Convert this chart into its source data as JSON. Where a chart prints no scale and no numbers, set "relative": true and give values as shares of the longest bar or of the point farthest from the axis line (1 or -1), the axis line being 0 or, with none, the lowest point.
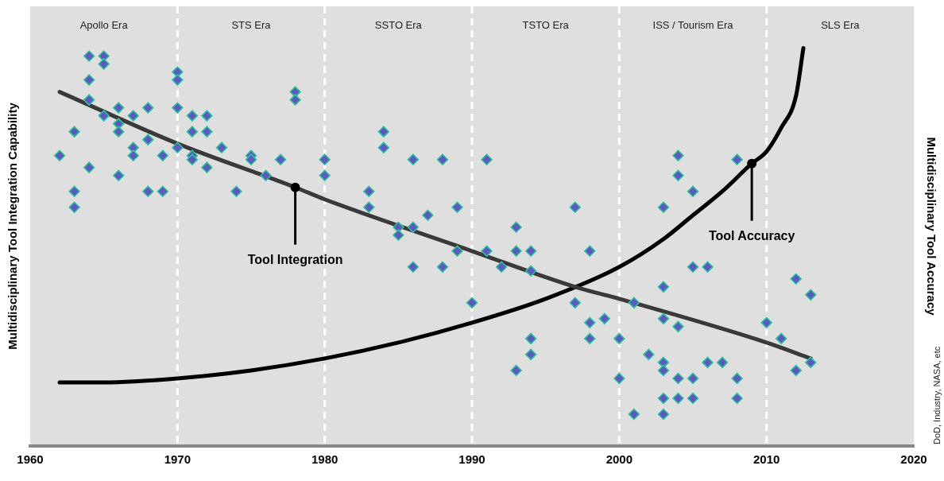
{
  "chart_data": {
    "type": "scatter",
    "xlabel": null,
    "ylabel": "Multidisciplinary Tool Integration Capability",
    "y2label": "Multidisciplinary Tool Accuracy",
    "relative": true,
    "xlim": [
      1960,
      2020
    ],
    "xticks": [
      1960,
      1970,
      1980,
      1990,
      2000,
      2010,
      2020
    ],
    "grid": "x",
    "legend": false,
    "marker": "diamond",
    "annotations": [
      "Apollo Era",
      "STS Era",
      "SSTO Era",
      "TSTO Era",
      "ISS / Tourism Era",
      "SLS Era",
      {
        "text": "Tool Integration",
        "x": 1978,
        "y": 0.65
      },
      {
        "text": "Tool Accuracy",
        "x": 2009,
        "y": 0.71
      },
      "DoD, Industry, NASA, etc"
    ],
    "series": [
      {
        "type": "scatter",
        "color": "#5b5bbf",
        "x": [
          1962,
          1963,
          1963,
          1963,
          1964,
          1964,
          1964,
          1964,
          1965,
          1965,
          1965,
          1966,
          1966,
          1966,
          1966,
          1967,
          1967,
          1967,
          1968,
          1968,
          1968,
          1969,
          1969,
          1970,
          1970,
          1970,
          1970,
          1971,
          1971,
          1971,
          1971,
          1972,
          1972,
          1972,
          1973,
          1974,
          1975,
          1975,
          1976,
          1977,
          1978,
          1978,
          1980,
          1980,
          1983,
          1983,
          1984,
          1984,
          1985,
          1985,
          1986,
          1986,
          1986,
          1987,
          1988,
          1988,
          1989,
          1989,
          1990,
          1991,
          1991,
          1992,
          1993,
          1993,
          1993,
          1994,
          1994,
          1994,
          1994,
          1997,
          1997,
          1998,
          1998,
          1998,
          1999,
          2000,
          2000,
          2001,
          2001,
          2002,
          2003,
          2003,
          2003,
          2003,
          2003,
          2003,
          2003,
          2004,
          2004,
          2004,
          2004,
          2004,
          2005,
          2005,
          2005,
          2005,
          2006,
          2006,
          2007,
          2008,
          2008,
          2008,
          2010,
          2011,
          2012,
          2012,
          2013,
          2013
        ],
        "values": [
          0.73,
          0.79,
          0.64,
          0.6,
          0.98,
          0.92,
          0.87,
          0.7,
          0.98,
          0.96,
          0.83,
          0.85,
          0.81,
          0.79,
          0.68,
          0.83,
          0.75,
          0.73,
          0.85,
          0.77,
          0.64,
          0.73,
          0.64,
          0.94,
          0.92,
          0.85,
          0.75,
          0.83,
          0.79,
          0.73,
          0.72,
          0.83,
          0.79,
          0.7,
          0.75,
          0.64,
          0.73,
          0.72,
          0.68,
          0.72,
          0.89,
          0.87,
          0.72,
          0.68,
          0.64,
          0.6,
          0.79,
          0.75,
          0.55,
          0.53,
          0.72,
          0.55,
          0.45,
          0.58,
          0.72,
          0.45,
          0.6,
          0.49,
          0.36,
          0.72,
          0.49,
          0.45,
          0.55,
          0.49,
          0.19,
          0.49,
          0.44,
          0.27,
          0.23,
          0.6,
          0.36,
          0.49,
          0.31,
          0.27,
          0.32,
          0.27,
          0.17,
          0.36,
          0.08,
          0.23,
          0.6,
          0.4,
          0.32,
          0.21,
          0.19,
          0.12,
          0.08,
          0.73,
          0.68,
          0.3,
          0.17,
          0.12,
          0.64,
          0.45,
          0.17,
          0.12,
          0.45,
          0.21,
          0.21,
          0.72,
          0.17,
          0.12,
          0.31,
          0.27,
          0.42,
          0.19,
          0.38,
          0.21
        ]
      },
      {
        "type": "line",
        "color": "#3a3a3a",
        "marker": "none",
        "x": [
          1962,
          1970,
          1978,
          1980,
          1990,
          1997,
          2000,
          2010,
          2013
        ],
        "values": [
          0.89,
          0.76,
          0.65,
          0.62,
          0.49,
          0.4,
          0.37,
          0.26,
          0.22
        ]
      },
      {
        "type": "line",
        "color": "#000000",
        "marker": "none",
        "x": [
          1962,
          1965,
          1970,
          1975,
          1980,
          1985,
          1990,
          1995,
          2000,
          2003,
          2005,
          2007,
          2009,
          2010,
          2011,
          2012,
          2012.5
        ],
        "values": [
          0.16,
          0.16,
          0.17,
          0.19,
          0.22,
          0.26,
          0.31,
          0.37,
          0.45,
          0.52,
          0.58,
          0.64,
          0.71,
          0.74,
          0.8,
          0.88,
          1
        ]
      }
    ]
  }
}
